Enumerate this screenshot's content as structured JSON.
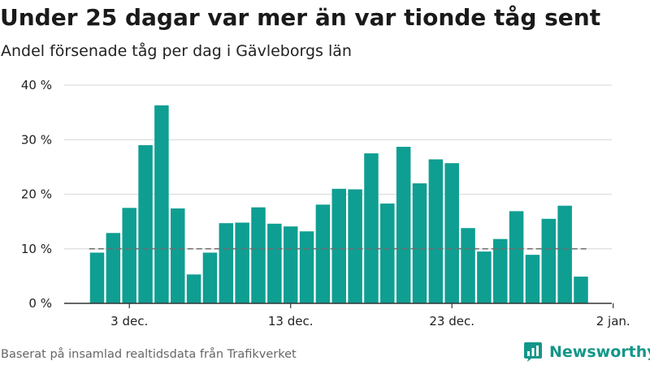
{
  "title": "Under 25 dagar var mer än var tionde tåg sent",
  "subtitle": "Andel försenade tåg per dag i Gävleborgs län",
  "footer": {
    "source": "Baserat på insamlad realtidsdata från Trafikverket",
    "brand": "Newsworthy",
    "brand_icon": "newsworthy-logo-icon"
  },
  "colors": {
    "bar": "#0f9e92",
    "reference_line": "#6e6e6e",
    "grid": "#dddddd",
    "axis": "#333333",
    "brand": "#139789"
  },
  "chart_data": {
    "type": "bar",
    "title": "Under 25 dagar var mer än var tionde tåg sent",
    "subtitle": "Andel försenade tåg per dag i Gävleborgs län",
    "xlabel": "",
    "ylabel": "",
    "categories": [
      "1 dec.",
      "2 dec.",
      "3 dec.",
      "4 dec.",
      "5 dec.",
      "6 dec.",
      "7 dec.",
      "8 dec.",
      "9 dec.",
      "10 dec.",
      "11 dec.",
      "12 dec.",
      "13 dec.",
      "14 dec.",
      "15 dec.",
      "16 dec.",
      "17 dec.",
      "18 dec.",
      "19 dec.",
      "20 dec.",
      "21 dec.",
      "22 dec.",
      "23 dec.",
      "24 dec.",
      "25 dec.",
      "26 dec.",
      "27 dec.",
      "28 dec.",
      "29 dec.",
      "30 dec.",
      "31 dec."
    ],
    "values": [
      9.3,
      12.9,
      17.5,
      29.0,
      36.3,
      17.4,
      5.3,
      9.3,
      14.7,
      14.8,
      17.6,
      14.6,
      14.1,
      13.2,
      18.1,
      21.0,
      20.9,
      27.5,
      18.3,
      28.7,
      22.0,
      26.4,
      25.7,
      13.8,
      9.5,
      11.8,
      16.9,
      8.9,
      15.5,
      17.9,
      4.9
    ],
    "ylim": [
      0,
      40
    ],
    "y_ticks": [
      0,
      10,
      20,
      30,
      40
    ],
    "y_tick_labels": [
      "0 %",
      "10 %",
      "20 %",
      "30 %",
      "40 %"
    ],
    "x_ticks": [
      {
        "day": 3,
        "label": "3 dec."
      },
      {
        "day": 13,
        "label": "13 dec."
      },
      {
        "day": 23,
        "label": "23 dec."
      },
      {
        "day": 33,
        "label": "2 jan."
      }
    ],
    "reference_line": {
      "value": 10,
      "style": "dashed"
    },
    "grid": true,
    "legend": "none"
  }
}
